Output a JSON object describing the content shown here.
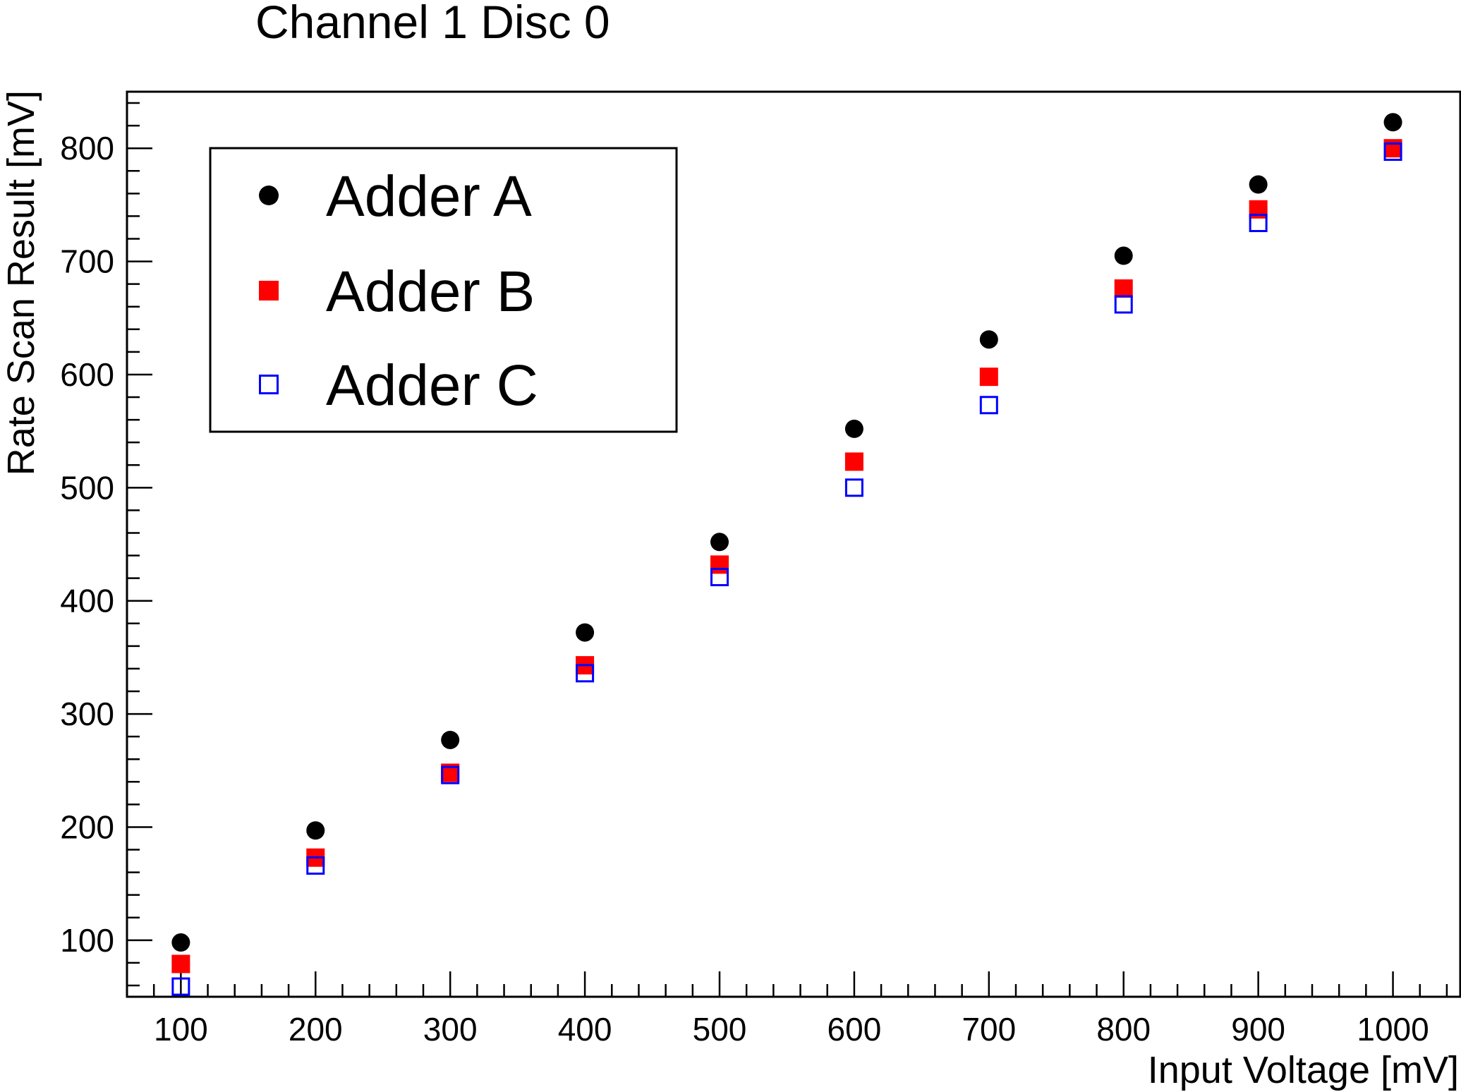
{
  "chart_data": {
    "type": "scatter",
    "title": "Channel 1 Disc 0",
    "xlabel": "Input Voltage [mV]",
    "ylabel": "Rate Scan Result [mV]",
    "xlim": [
      60,
      1050
    ],
    "ylim": [
      50,
      850
    ],
    "x_ticks": [
      100,
      200,
      300,
      400,
      500,
      600,
      700,
      800,
      900,
      1000
    ],
    "y_ticks": [
      100,
      200,
      300,
      400,
      500,
      600,
      700,
      800
    ],
    "grid": false,
    "legend_position": "top-left",
    "x": [
      100,
      200,
      300,
      400,
      500,
      600,
      700,
      800,
      900,
      1000
    ],
    "series": [
      {
        "name": "Adder A",
        "marker": "filled-circle",
        "color": "#000000",
        "values": [
          98,
          197,
          277,
          372,
          452,
          552,
          631,
          705,
          768,
          823
        ]
      },
      {
        "name": "Adder B",
        "marker": "filled-square",
        "color": "#ff0000",
        "values": [
          79,
          173,
          248,
          343,
          432,
          523,
          598,
          676,
          746,
          800
        ]
      },
      {
        "name": "Adder C",
        "marker": "open-square",
        "color": "#0000ff",
        "values": [
          59,
          166,
          246,
          336,
          421,
          500,
          573,
          662,
          734,
          797
        ]
      }
    ]
  }
}
